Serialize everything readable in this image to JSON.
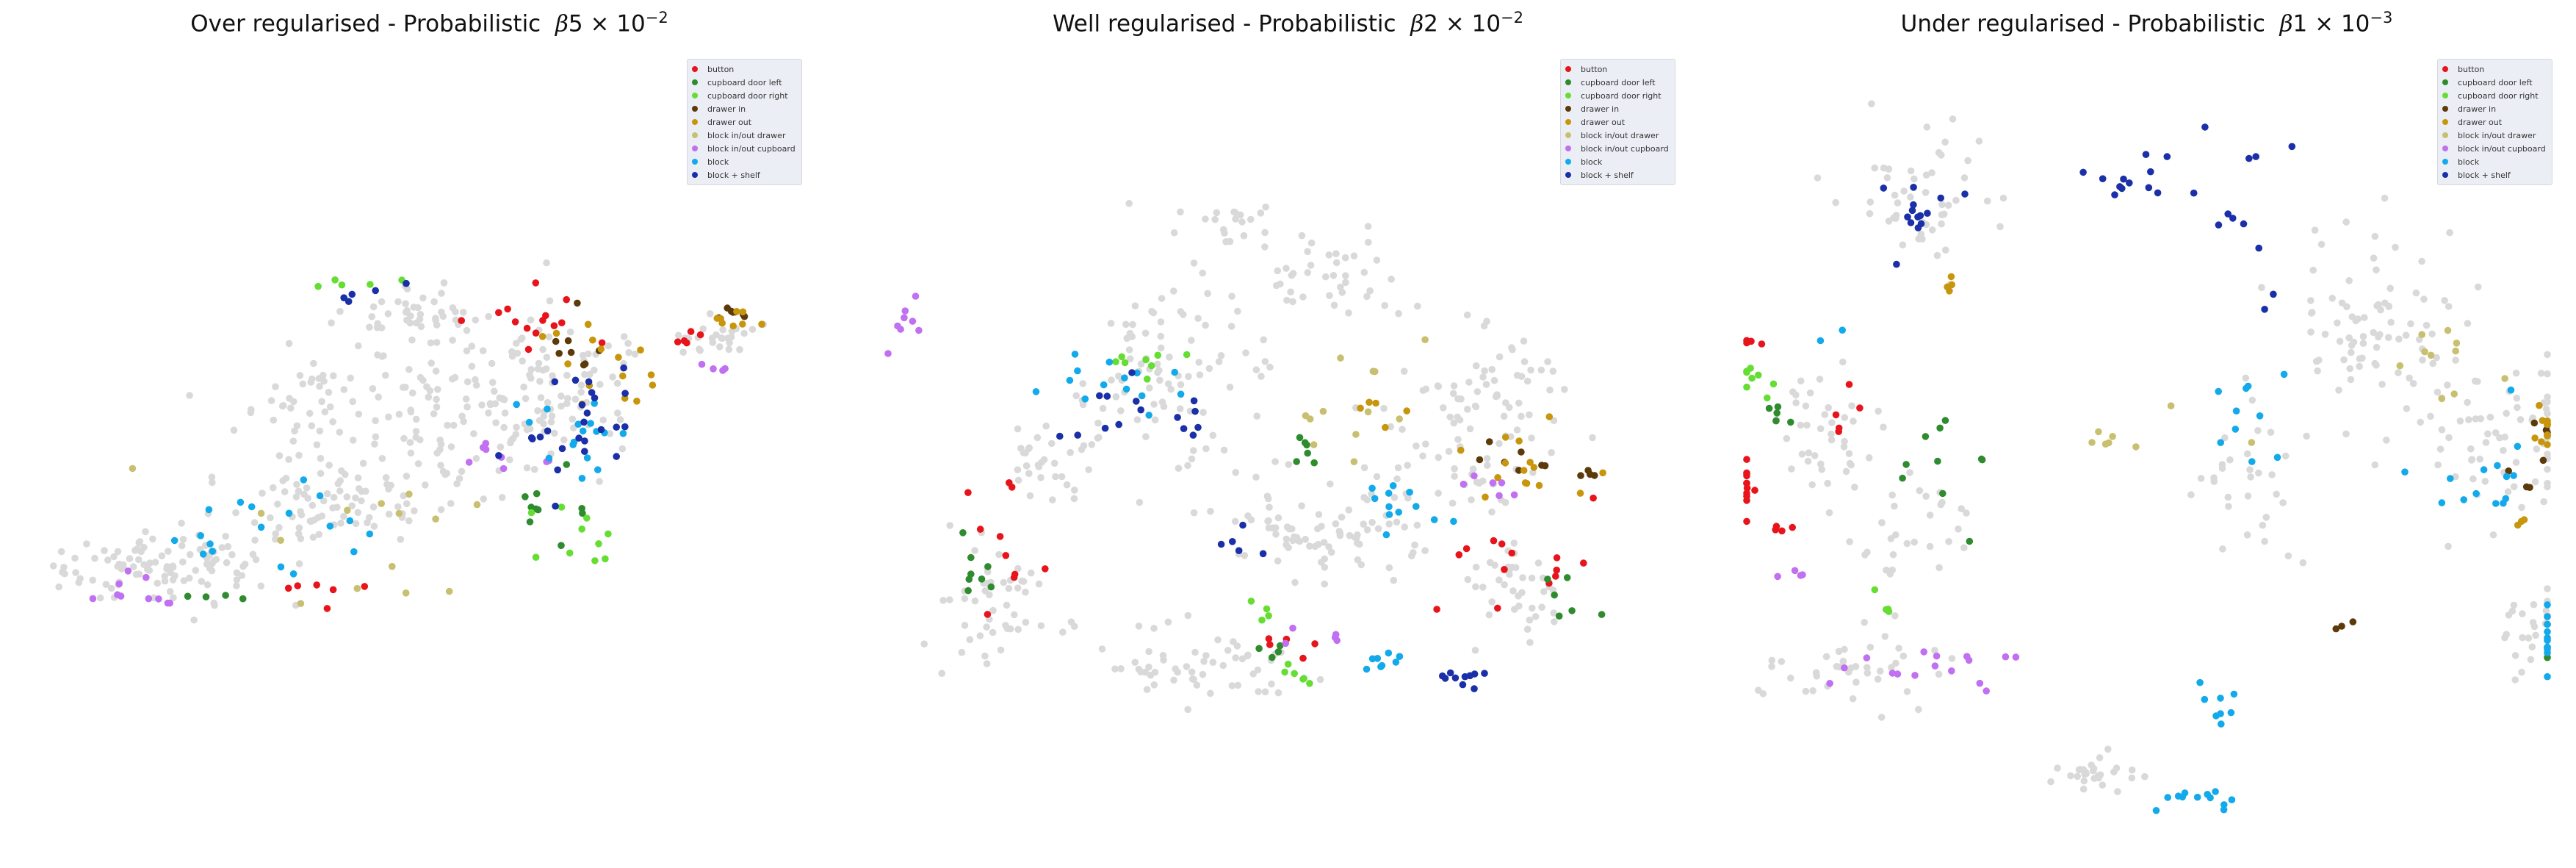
{
  "legend_labels": [
    "button",
    "cupboard door left",
    "cupboard door right",
    "drawer in",
    "drawer out",
    "block in/out drawer",
    "block in/out cupboard",
    "block",
    "block + shelf"
  ],
  "colors": {
    "background": "#d9d9d9",
    "button": "#e8141c",
    "cupboard door left": "#2e8b2e",
    "cupboard door right": "#66dd33",
    "drawer in": "#5c3a0a",
    "drawer out": "#c8960c",
    "block in/out drawer": "#c8c070",
    "block in/out cupboard": "#c070f0",
    "block": "#12aaea",
    "block + shelf": "#1a2fa8"
  },
  "chart_data": [
    {
      "type": "scatter",
      "title_text": "Over regularised - Probabilistic",
      "beta_symbol": "β",
      "beta_mantissa": "5",
      "beta_times": "×",
      "beta_base": "10",
      "beta_exponent": "−2",
      "grid": false,
      "axes_visible": false,
      "legend_position": "upper-right",
      "series_summary": "2-D embedding; gray background points plus points coloured by the 9 legend classes",
      "seed": 11
    },
    {
      "type": "scatter",
      "title_text": "Well regularised - Probabilistic",
      "beta_symbol": "β",
      "beta_mantissa": "2",
      "beta_times": "×",
      "beta_base": "10",
      "beta_exponent": "−2",
      "grid": false,
      "axes_visible": false,
      "legend_position": "upper-right",
      "series_summary": "2-D embedding; gray background points plus points coloured by the 9 legend classes",
      "seed": 27
    },
    {
      "type": "scatter",
      "title_text": "Under regularised - Probabilistic",
      "beta_symbol": "β",
      "beta_mantissa": "1",
      "beta_times": "×",
      "beta_base": "10",
      "beta_exponent": "−3",
      "grid": false,
      "axes_visible": false,
      "legend_position": "upper-right",
      "series_summary": "2-D embedding; gray background points plus points coloured by the 9 legend classes",
      "seed": 53
    }
  ]
}
